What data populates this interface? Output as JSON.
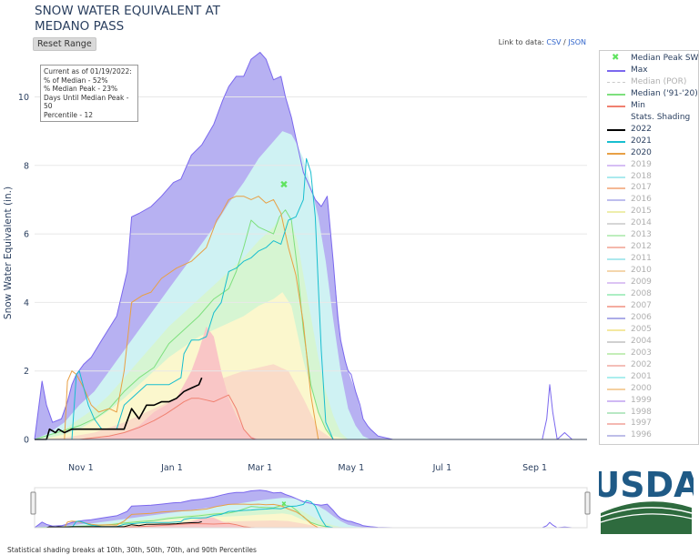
{
  "title_line1": "SNOW WATER EQUIVALENT AT",
  "title_line2": "MEDANO PASS",
  "reset_label": "Reset Range",
  "link_prefix": "Link to data: ",
  "link_csv": "CSV",
  "link_sep": " / ",
  "link_json": "JSON",
  "info": {
    "line1": "Current as of 01/19/2022:",
    "line2": "% of Median - 52%",
    "line3": "% Median Peak - 23%",
    "line4": "Days Until Median Peak - 50",
    "line5": "Percentile - 12"
  },
  "footer": "Statistical shading breaks at 10th, 30th, 50th, 70th, and 90th Percentiles",
  "usda_text": "USDA",
  "legend": [
    {
      "label": "Median Peak SWE",
      "color": "#5fe35f",
      "kind": "marker"
    },
    {
      "label": "Max",
      "color": "#7b68ee",
      "kind": "line"
    },
    {
      "label": "Median (POR)",
      "color": "#c9c9c9",
      "kind": "dash"
    },
    {
      "label": "Median ('91-'20)",
      "color": "#7ee07e",
      "kind": "line"
    },
    {
      "label": "Min",
      "color": "#f08070",
      "kind": "line"
    },
    {
      "label": "Stats. Shading",
      "color": "#ffffff",
      "kind": "none"
    },
    {
      "label": "2022",
      "color": "#000000",
      "kind": "line"
    },
    {
      "label": "2021",
      "color": "#17becf",
      "kind": "line"
    },
    {
      "label": "2020",
      "color": "#e8a045",
      "kind": "line"
    },
    {
      "label": "2019",
      "color": "#c8a8f0",
      "kind": "faded"
    },
    {
      "label": "2018",
      "color": "#8fe3e8",
      "kind": "faded"
    },
    {
      "label": "2017",
      "color": "#f0a070",
      "kind": "faded"
    },
    {
      "label": "2016",
      "color": "#a8a8e8",
      "kind": "faded"
    },
    {
      "label": "2015",
      "color": "#e8e890",
      "kind": "faded"
    },
    {
      "label": "2014",
      "color": "#c8c8c8",
      "kind": "faded"
    },
    {
      "label": "2013",
      "color": "#a8e8a8",
      "kind": "faded"
    },
    {
      "label": "2012",
      "color": "#f0a090",
      "kind": "faded"
    },
    {
      "label": "2011",
      "color": "#90e0e8",
      "kind": "faded"
    },
    {
      "label": "2010",
      "color": "#f0c890",
      "kind": "faded"
    },
    {
      "label": "2009",
      "color": "#d0b0f0",
      "kind": "faded"
    },
    {
      "label": "2008",
      "color": "#90e8b0",
      "kind": "faded"
    },
    {
      "label": "2007",
      "color": "#f09080",
      "kind": "faded"
    },
    {
      "label": "2006",
      "color": "#9090e0",
      "kind": "faded"
    },
    {
      "label": "2005",
      "color": "#f0e080",
      "kind": "faded"
    },
    {
      "label": "2004",
      "color": "#c0c0c0",
      "kind": "faded"
    },
    {
      "label": "2003",
      "color": "#b0e8a0",
      "kind": "faded"
    },
    {
      "label": "2002",
      "color": "#f0a8a0",
      "kind": "faded"
    },
    {
      "label": "2001",
      "color": "#90e8e8",
      "kind": "faded"
    },
    {
      "label": "2000",
      "color": "#f0c080",
      "kind": "faded"
    },
    {
      "label": "1999",
      "color": "#c0a0f0",
      "kind": "faded"
    },
    {
      "label": "1998",
      "color": "#a0e0b0",
      "kind": "faded"
    },
    {
      "label": "1997",
      "color": "#f0a098",
      "kind": "faded"
    },
    {
      "label": "1996",
      "color": "#a8a8e0",
      "kind": "faded"
    }
  ],
  "chart_data": {
    "type": "area",
    "title": "SNOW WATER EQUIVALENT AT MEDANO PASS",
    "ylabel": "Snow Water Equivalent (in.)",
    "xlabel": "",
    "ylim": [
      0,
      11.5
    ],
    "yticks": [
      0,
      2,
      4,
      6,
      8,
      10
    ],
    "x_tick_labels": [
      "Nov 1",
      "Jan 1",
      "Mar 1",
      "May 1",
      "Jul 1",
      "Sep 1"
    ],
    "x_tick_days": [
      31,
      92,
      151,
      212,
      273,
      335
    ],
    "xlim_days": [
      0,
      370
    ],
    "x_unit": "days since Oct 1",
    "median_peak": {
      "day": 167,
      "value": 7.45
    },
    "bands": [
      {
        "name": "max-90",
        "color": "#b7b1f2",
        "x": [
          0,
          5,
          8,
          12,
          18,
          22,
          25,
          28,
          33,
          38,
          45,
          55,
          62,
          65,
          70,
          78,
          85,
          93,
          98,
          105,
          112,
          120,
          126,
          130,
          135,
          140,
          145,
          151,
          155,
          160,
          165,
          168,
          172,
          176,
          180,
          185,
          188,
          192,
          196,
          200,
          205,
          210,
          215,
          220,
          225,
          230,
          240,
          345,
          370
        ],
        "y": [
          0,
          1.7,
          1,
          0.5,
          0.6,
          1.1,
          1.6,
          1.9,
          2.2,
          2.4,
          2.9,
          3.6,
          4.9,
          6.5,
          6.6,
          6.8,
          7.1,
          7.5,
          7.6,
          8.3,
          8.6,
          9.2,
          9.9,
          10.3,
          10.6,
          10.6,
          11.1,
          11.3,
          11.1,
          10.5,
          10.6,
          10.0,
          9.4,
          8.6,
          7.8,
          7.3,
          7.0,
          6.8,
          7.1,
          5.2,
          2.9,
          2.0,
          1.4,
          0.6,
          0.3,
          0.1,
          0,
          0,
          0
        ]
      },
      {
        "name": "90-70",
        "color": "#cff2f3",
        "x": [
          0,
          10,
          20,
          30,
          40,
          50,
          60,
          70,
          80,
          90,
          100,
          110,
          120,
          130,
          140,
          150,
          160,
          166,
          172,
          176,
          180,
          185,
          190,
          195,
          200,
          205,
          210,
          215,
          220,
          225,
          230,
          240,
          370
        ],
        "y": [
          0,
          0.2,
          0.5,
          1.0,
          1.4,
          2.0,
          2.6,
          3.2,
          3.8,
          4.4,
          5.0,
          5.6,
          6.2,
          6.9,
          7.5,
          8.2,
          8.7,
          9.0,
          8.9,
          8.6,
          8.2,
          7.4,
          6.5,
          5.2,
          3.5,
          2.0,
          0.9,
          0.4,
          0.1,
          0,
          0,
          0,
          0
        ]
      },
      {
        "name": "70-50",
        "color": "#d6f5d2",
        "x": [
          0,
          10,
          20,
          30,
          40,
          50,
          60,
          70,
          80,
          90,
          100,
          110,
          120,
          130,
          140,
          150,
          160,
          166,
          172,
          176,
          180,
          185,
          190,
          195,
          200,
          205,
          210,
          220,
          370
        ],
        "y": [
          0,
          0.1,
          0.3,
          0.6,
          0.9,
          1.3,
          1.8,
          2.3,
          2.8,
          3.3,
          3.7,
          4.1,
          4.5,
          4.9,
          5.3,
          5.8,
          6.2,
          6.5,
          6.3,
          5.8,
          4.8,
          3.6,
          2.4,
          1.4,
          0.7,
          0.2,
          0,
          0,
          0
        ]
      },
      {
        "name": "50-30",
        "color": "#fbf7cd",
        "x": [
          0,
          10,
          20,
          30,
          40,
          50,
          60,
          70,
          80,
          90,
          100,
          110,
          120,
          130,
          140,
          150,
          160,
          166,
          172,
          176,
          180,
          185,
          190,
          195,
          200,
          210,
          370
        ],
        "y": [
          0,
          0.05,
          0.15,
          0.3,
          0.55,
          0.85,
          1.2,
          1.6,
          2.0,
          2.4,
          2.7,
          3.0,
          3.2,
          3.4,
          3.6,
          3.9,
          4.1,
          4.3,
          3.9,
          3.1,
          2.3,
          1.5,
          0.8,
          0.3,
          0.1,
          0,
          0
        ]
      },
      {
        "name": "30-10",
        "color": "#fadcc8",
        "x": [
          0,
          20,
          40,
          60,
          80,
          100,
          120,
          140,
          160,
          170,
          180,
          190,
          200,
          370
        ],
        "y": [
          0,
          0.05,
          0.2,
          0.5,
          0.9,
          1.3,
          1.7,
          2.0,
          2.2,
          2.0,
          1.2,
          0.3,
          0,
          0
        ]
      },
      {
        "name": "10-min",
        "color": "#f9c6c6",
        "x": [
          0,
          30,
          45,
          60,
          70,
          75,
          80,
          88,
          95,
          100,
          105,
          110,
          115,
          120,
          125,
          130,
          135,
          140,
          145,
          150,
          155,
          160,
          165,
          170,
          175,
          180,
          370
        ],
        "y": [
          0,
          0,
          0.05,
          0.2,
          0.4,
          0.6,
          0.8,
          1.0,
          1.2,
          1.6,
          2.0,
          2.6,
          3.3,
          3.0,
          2.0,
          1.2,
          0.7,
          0.3,
          0.1,
          0,
          0,
          0,
          0,
          0,
          0,
          0,
          0
        ]
      }
    ],
    "series": [
      {
        "name": "Max",
        "color": "#7b68ee",
        "width": 1,
        "x": [
          0,
          5,
          8,
          12,
          18,
          22,
          25,
          28,
          33,
          38,
          45,
          55,
          62,
          65,
          70,
          78,
          85,
          93,
          98,
          105,
          112,
          120,
          126,
          130,
          135,
          140,
          145,
          151,
          155,
          160,
          165,
          168,
          172,
          176,
          180,
          185,
          188,
          192,
          196,
          200,
          203,
          205,
          208,
          210,
          212,
          215,
          218,
          220,
          223,
          225,
          230,
          240,
          340,
          343,
          345,
          347,
          350,
          355,
          360,
          370
        ],
        "y": [
          0,
          1.7,
          1,
          0.5,
          0.6,
          1.1,
          1.6,
          1.9,
          2.2,
          2.4,
          2.9,
          3.6,
          4.9,
          6.5,
          6.6,
          6.8,
          7.1,
          7.5,
          7.6,
          8.3,
          8.6,
          9.2,
          9.9,
          10.3,
          10.6,
          10.6,
          11.1,
          11.3,
          11.1,
          10.5,
          10.6,
          10.0,
          9.4,
          8.6,
          7.8,
          7.3,
          7.0,
          6.8,
          7.1,
          5.2,
          3.6,
          2.9,
          2.3,
          2.0,
          1.9,
          1.4,
          1.0,
          0.6,
          0.4,
          0.3,
          0.1,
          0,
          0,
          0.6,
          1.6,
          0.8,
          0,
          0.2,
          0,
          0
        ]
      },
      {
        "name": "Median ('91-'20)",
        "color": "#7ee07e",
        "width": 1,
        "x": [
          0,
          30,
          40,
          50,
          60,
          70,
          80,
          90,
          100,
          110,
          120,
          130,
          135,
          140,
          145,
          150,
          155,
          160,
          164,
          168,
          172,
          176,
          180,
          185,
          190,
          195,
          200,
          370
        ],
        "y": [
          0,
          0.4,
          0.6,
          0.9,
          1.4,
          1.8,
          2.1,
          2.8,
          3.2,
          3.6,
          4.1,
          4.4,
          4.9,
          5.6,
          6.4,
          6.2,
          6.1,
          6.0,
          6.5,
          6.7,
          6.4,
          5.0,
          3.2,
          1.6,
          0.8,
          0.3,
          0,
          0
        ]
      },
      {
        "name": "Min",
        "color": "#f08070",
        "width": 1,
        "x": [
          0,
          30,
          50,
          60,
          70,
          80,
          88,
          95,
          100,
          105,
          110,
          115,
          120,
          125,
          130,
          135,
          140,
          145,
          148,
          370
        ],
        "y": [
          0,
          0,
          0.1,
          0.2,
          0.35,
          0.55,
          0.75,
          0.95,
          1.1,
          1.2,
          1.2,
          1.15,
          1.1,
          1.2,
          1.3,
          0.9,
          0.3,
          0.05,
          0,
          0
        ]
      },
      {
        "name": "2020",
        "color": "#e8a045",
        "width": 1,
        "x": [
          0,
          20,
          22,
          25,
          28,
          33,
          38,
          43,
          50,
          55,
          60,
          65,
          72,
          78,
          85,
          95,
          105,
          115,
          122,
          125,
          130,
          135,
          140,
          145,
          150,
          155,
          160,
          165,
          170,
          175,
          180,
          185,
          190,
          370
        ],
        "y": [
          0,
          0,
          1.7,
          2.0,
          1.9,
          1.5,
          1.0,
          0.8,
          0.9,
          0.8,
          2.0,
          4.0,
          4.2,
          4.3,
          4.7,
          5.0,
          5.2,
          5.6,
          6.4,
          6.6,
          7.0,
          7.1,
          7.1,
          7.0,
          7.1,
          6.9,
          7.0,
          6.6,
          5.6,
          4.8,
          3.4,
          1.3,
          0,
          0
        ]
      },
      {
        "name": "2021",
        "color": "#17becf",
        "width": 1,
        "x": [
          0,
          25,
          28,
          30,
          33,
          36,
          40,
          45,
          55,
          60,
          65,
          70,
          75,
          80,
          90,
          98,
          100,
          105,
          110,
          115,
          120,
          125,
          130,
          135,
          140,
          145,
          150,
          155,
          160,
          165,
          170,
          175,
          180,
          182,
          185,
          188,
          190,
          192,
          195,
          200,
          370
        ],
        "y": [
          0,
          0,
          1.9,
          2.0,
          1.5,
          1.0,
          0.6,
          0.3,
          0.3,
          1.0,
          1.2,
          1.4,
          1.6,
          1.6,
          1.6,
          1.8,
          2.5,
          2.9,
          2.9,
          3.0,
          3.7,
          4.0,
          4.9,
          5.0,
          5.2,
          5.3,
          5.5,
          5.6,
          5.8,
          5.7,
          6.4,
          6.5,
          7.0,
          8.2,
          7.8,
          6.5,
          4.5,
          2.6,
          0.5,
          0,
          0
        ]
      },
      {
        "name": "2022",
        "color": "#000000",
        "width": 1.6,
        "x": [
          0,
          8,
          10,
          14,
          16,
          20,
          25,
          30,
          35,
          45,
          55,
          60,
          65,
          70,
          75,
          80,
          85,
          90,
          95,
          100,
          105,
          110,
          112
        ],
        "y": [
          0,
          0,
          0.3,
          0.2,
          0.3,
          0.2,
          0.3,
          0.3,
          0.3,
          0.3,
          0.3,
          0.3,
          0.9,
          0.6,
          1.0,
          1.0,
          1.1,
          1.1,
          1.2,
          1.4,
          1.5,
          1.6,
          1.8
        ]
      }
    ]
  }
}
